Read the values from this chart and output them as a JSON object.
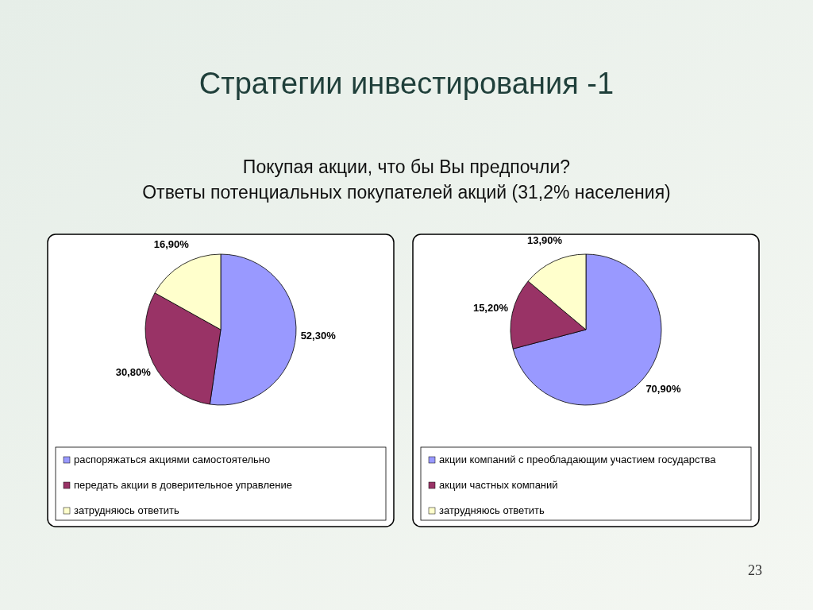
{
  "chart_data": [
    {
      "type": "pie",
      "title": "Стратегии инвестирования -1",
      "subtitle": "Покупая акции, что бы Вы предпочли?\nОтветы потенциальных покупателей акций (31,2% населения)",
      "categories": [
        "распоряжаться акциями самостоятельно",
        "передать акции в доверительное управление",
        "затрудняюсь ответить"
      ],
      "values": [
        52.3,
        30.8,
        16.9
      ],
      "value_labels": [
        "52,30%",
        "30,80%",
        "16,90%"
      ],
      "colors": [
        "#9999ff",
        "#993366",
        "#ffffcc"
      ],
      "legend": "bottom"
    },
    {
      "type": "pie",
      "categories": [
        "акции компаний с преобладающим участием государства",
        "акции частных компаний",
        "затрудняюсь ответить"
      ],
      "values": [
        70.9,
        15.2,
        13.9
      ],
      "value_labels": [
        "70,90%",
        "15,20%",
        "13,90%"
      ],
      "colors": [
        "#9999ff",
        "#993366",
        "#ffffcc"
      ],
      "legend": "bottom",
      "annotations": [
        "23"
      ]
    }
  ]
}
